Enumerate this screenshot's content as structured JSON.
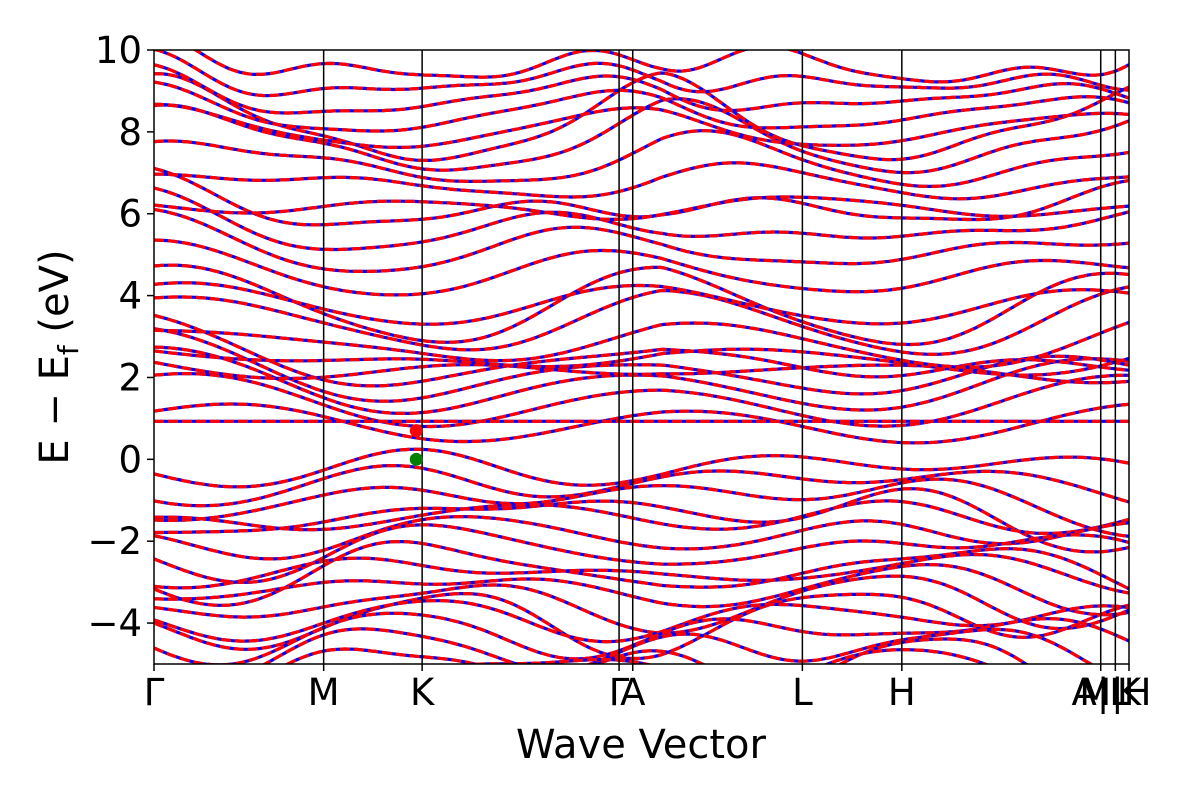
{
  "chart_data": {
    "type": "line",
    "title": "",
    "xlabel": "Wave Vector",
    "ylabel_main": "E − E",
    "ylabel_sub": "f",
    "ylabel_unit": " (eV)",
    "ylim": [
      -5,
      10
    ],
    "yticks": [
      -4,
      -2,
      0,
      2,
      4,
      6,
      8,
      10
    ],
    "ytick_labels": [
      "−4",
      "−2",
      "0",
      "2",
      "4",
      "6",
      "8",
      "10"
    ],
    "kpath_max": 1.0,
    "kpoints": [
      {
        "label": "Γ",
        "k": 0.0
      },
      {
        "label": "M",
        "k": 0.174
      },
      {
        "label": "K",
        "k": 0.275
      },
      {
        "label": "Γ",
        "k": 0.477
      },
      {
        "label": "A",
        "k": 0.491
      },
      {
        "label": "L",
        "k": 0.665
      },
      {
        "label": "H",
        "k": 0.767
      },
      {
        "label": "A|L",
        "k": 0.971
      },
      {
        "label": "M|H",
        "k": 0.986
      },
      {
        "label": "K",
        "k": 1.0
      }
    ],
    "series": [
      {
        "name": "",
        "color": "#0000ff",
        "style": "solid"
      },
      {
        "name": "",
        "color": "#ff0000",
        "style": "dashed"
      }
    ],
    "markers": [
      {
        "type": "CBM",
        "k": 0.269,
        "energy": 0.7,
        "color": "#ff0000"
      },
      {
        "type": "VBM",
        "k": 0.269,
        "energy": 0.0,
        "color": "#008000"
      }
    ],
    "flat_band_energy": 0.93,
    "valence_band_tops": [
      0.0,
      -0.3,
      -0.6,
      -0.95,
      -1.25,
      -1.6,
      -1.85,
      -2.2,
      -2.5,
      -2.8,
      -3.1,
      -3.45,
      -3.7,
      -4.0,
      -4.3,
      -4.6,
      -4.9
    ],
    "conduction_band_bottoms": [
      0.7,
      1.1,
      1.4,
      1.6,
      1.8,
      2.0,
      2.15,
      2.4,
      2.8,
      3.1,
      3.6,
      4.3,
      4.8,
      5.2,
      5.6,
      6.0,
      6.5,
      6.9,
      7.3,
      7.6,
      7.9,
      8.2,
      8.5,
      8.8,
      9.1
    ]
  }
}
